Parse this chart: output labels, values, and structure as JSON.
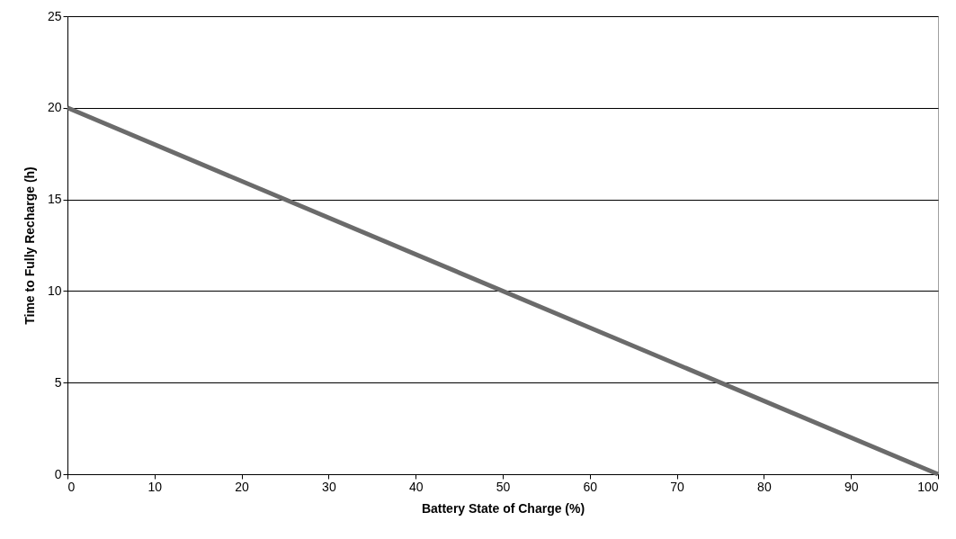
{
  "chart_data": {
    "type": "line",
    "xlabel": "Battery State of Charge (%)",
    "ylabel": "Time to Fully Recharge (h)",
    "x": [
      0,
      100
    ],
    "series": [
      {
        "color": "#6b6b6b",
        "values": [
          20,
          0
        ]
      }
    ],
    "xlim": [
      0,
      100
    ],
    "xticks": [
      0,
      10,
      20,
      30,
      40,
      50,
      60,
      70,
      80,
      90,
      100
    ],
    "ylim": [
      0,
      25
    ],
    "yticks": [
      0,
      5,
      10,
      15,
      20,
      25
    ],
    "grid": "y",
    "marker": "none",
    "line_style": "solid"
  }
}
